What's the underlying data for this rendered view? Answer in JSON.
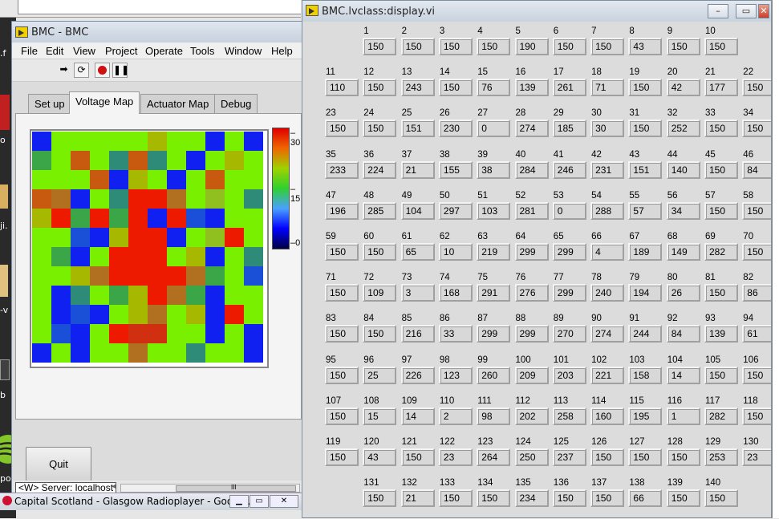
{
  "left_window": {
    "title": "BMC - BMC",
    "menu": [
      "File",
      "Edit",
      "View",
      "Project",
      "Operate",
      "Tools",
      "Window",
      "Help"
    ],
    "tabs": [
      "Set up",
      "Voltage Map",
      "Actuator Map",
      "Debug"
    ],
    "active_tab": "Voltage Map",
    "colorbar_ticks": [
      "30",
      "15",
      "0"
    ],
    "quit_label": "Quit",
    "server_label": "<W> Server: localhost",
    "scroll_marker": "III"
  },
  "heatmap": {
    "rows": 12,
    "cols": 12,
    "palette": {
      "G": "#78f000",
      "B": "#1020f0",
      "R": "#ee1a00",
      "O": "#c85a10",
      "T": "#2e8b78",
      "M": "#3aa648",
      "Y": "#a6b800",
      "K": "#1a4fd8",
      "S": "#4cd030",
      "D": "#d03010",
      "L": "#90c020",
      "P": "#b07020"
    },
    "grid": [
      "BGGGGGYGGBGB",
      "MGOGTOTGBGYG",
      "GGGOBYGBGOGG",
      "OPBGTRRPGLGT",
      "YRMRMRBRKBGG",
      "GGKBYRRBGLRG",
      "GMBGRRRGYBGT",
      "GGYPRRRRPMGK",
      "GBTGMYRPMBGG",
      "GBKBGYPGYBRG",
      "GKBGRDDGGBGB",
      "BGBGGPGGTGGB"
    ]
  },
  "right_window": {
    "title": "BMC.lvclass:display.vi",
    "minimize": "–",
    "restore": "▭",
    "close": "✕",
    "items": [
      {
        "n": "1",
        "v": "150"
      },
      {
        "n": "2",
        "v": "150"
      },
      {
        "n": "3",
        "v": "150"
      },
      {
        "n": "4",
        "v": "150"
      },
      {
        "n": "5",
        "v": "190"
      },
      {
        "n": "6",
        "v": "150"
      },
      {
        "n": "7",
        "v": "150"
      },
      {
        "n": "8",
        "v": "43"
      },
      {
        "n": "9",
        "v": "150"
      },
      {
        "n": "10",
        "v": "150"
      },
      {
        "n": "11",
        "v": "110"
      },
      {
        "n": "12",
        "v": "150"
      },
      {
        "n": "13",
        "v": "243"
      },
      {
        "n": "14",
        "v": "150"
      },
      {
        "n": "15",
        "v": "76"
      },
      {
        "n": "16",
        "v": "139"
      },
      {
        "n": "17",
        "v": "261"
      },
      {
        "n": "18",
        "v": "71"
      },
      {
        "n": "19",
        "v": "150"
      },
      {
        "n": "20",
        "v": "42"
      },
      {
        "n": "21",
        "v": "177"
      },
      {
        "n": "22",
        "v": "150"
      },
      {
        "n": "23",
        "v": "150"
      },
      {
        "n": "24",
        "v": "150"
      },
      {
        "n": "25",
        "v": "151"
      },
      {
        "n": "26",
        "v": "230"
      },
      {
        "n": "27",
        "v": "0"
      },
      {
        "n": "28",
        "v": "274"
      },
      {
        "n": "29",
        "v": "185"
      },
      {
        "n": "30",
        "v": "30"
      },
      {
        "n": "31",
        "v": "150"
      },
      {
        "n": "32",
        "v": "252"
      },
      {
        "n": "33",
        "v": "150"
      },
      {
        "n": "34",
        "v": "150"
      },
      {
        "n": "35",
        "v": "233"
      },
      {
        "n": "36",
        "v": "224"
      },
      {
        "n": "37",
        "v": "21"
      },
      {
        "n": "38",
        "v": "155"
      },
      {
        "n": "39",
        "v": "38"
      },
      {
        "n": "40",
        "v": "284"
      },
      {
        "n": "41",
        "v": "246"
      },
      {
        "n": "42",
        "v": "231"
      },
      {
        "n": "43",
        "v": "151"
      },
      {
        "n": "44",
        "v": "140"
      },
      {
        "n": "45",
        "v": "150"
      },
      {
        "n": "46",
        "v": "84"
      },
      {
        "n": "47",
        "v": "196"
      },
      {
        "n": "48",
        "v": "285"
      },
      {
        "n": "49",
        "v": "104"
      },
      {
        "n": "50",
        "v": "297"
      },
      {
        "n": "51",
        "v": "103"
      },
      {
        "n": "52",
        "v": "281"
      },
      {
        "n": "53",
        "v": "0"
      },
      {
        "n": "54",
        "v": "288"
      },
      {
        "n": "55",
        "v": "57"
      },
      {
        "n": "56",
        "v": "34"
      },
      {
        "n": "57",
        "v": "150"
      },
      {
        "n": "58",
        "v": "150"
      },
      {
        "n": "59",
        "v": "150"
      },
      {
        "n": "60",
        "v": "150"
      },
      {
        "n": "61",
        "v": "65"
      },
      {
        "n": "62",
        "v": "10"
      },
      {
        "n": "63",
        "v": "219"
      },
      {
        "n": "64",
        "v": "299"
      },
      {
        "n": "65",
        "v": "299"
      },
      {
        "n": "66",
        "v": "4"
      },
      {
        "n": "67",
        "v": "189"
      },
      {
        "n": "68",
        "v": "149"
      },
      {
        "n": "69",
        "v": "282"
      },
      {
        "n": "70",
        "v": "150"
      },
      {
        "n": "71",
        "v": "150"
      },
      {
        "n": "72",
        "v": "109"
      },
      {
        "n": "73",
        "v": "3"
      },
      {
        "n": "74",
        "v": "168"
      },
      {
        "n": "75",
        "v": "291"
      },
      {
        "n": "76",
        "v": "276"
      },
      {
        "n": "77",
        "v": "299"
      },
      {
        "n": "78",
        "v": "240"
      },
      {
        "n": "79",
        "v": "194"
      },
      {
        "n": "80",
        "v": "26"
      },
      {
        "n": "81",
        "v": "150"
      },
      {
        "n": "82",
        "v": "86"
      },
      {
        "n": "83",
        "v": "150"
      },
      {
        "n": "84",
        "v": "150"
      },
      {
        "n": "85",
        "v": "216"
      },
      {
        "n": "86",
        "v": "33"
      },
      {
        "n": "87",
        "v": "299"
      },
      {
        "n": "88",
        "v": "299"
      },
      {
        "n": "89",
        "v": "270"
      },
      {
        "n": "90",
        "v": "274"
      },
      {
        "n": "91",
        "v": "244"
      },
      {
        "n": "92",
        "v": "84"
      },
      {
        "n": "93",
        "v": "139"
      },
      {
        "n": "94",
        "v": "61"
      },
      {
        "n": "95",
        "v": "150"
      },
      {
        "n": "96",
        "v": "25"
      },
      {
        "n": "97",
        "v": "226"
      },
      {
        "n": "98",
        "v": "123"
      },
      {
        "n": "99",
        "v": "260"
      },
      {
        "n": "100",
        "v": "209"
      },
      {
        "n": "101",
        "v": "203"
      },
      {
        "n": "102",
        "v": "221"
      },
      {
        "n": "103",
        "v": "158"
      },
      {
        "n": "104",
        "v": "14"
      },
      {
        "n": "105",
        "v": "150"
      },
      {
        "n": "106",
        "v": "150"
      },
      {
        "n": "107",
        "v": "150"
      },
      {
        "n": "108",
        "v": "15"
      },
      {
        "n": "109",
        "v": "14"
      },
      {
        "n": "110",
        "v": "2"
      },
      {
        "n": "111",
        "v": "98"
      },
      {
        "n": "112",
        "v": "202"
      },
      {
        "n": "113",
        "v": "258"
      },
      {
        "n": "114",
        "v": "160"
      },
      {
        "n": "115",
        "v": "195"
      },
      {
        "n": "116",
        "v": "1"
      },
      {
        "n": "117",
        "v": "282"
      },
      {
        "n": "118",
        "v": "150"
      },
      {
        "n": "119",
        "v": "150"
      },
      {
        "n": "120",
        "v": "43"
      },
      {
        "n": "121",
        "v": "150"
      },
      {
        "n": "122",
        "v": "23"
      },
      {
        "n": "123",
        "v": "264"
      },
      {
        "n": "124",
        "v": "250"
      },
      {
        "n": "125",
        "v": "237"
      },
      {
        "n": "126",
        "v": "150"
      },
      {
        "n": "127",
        "v": "150"
      },
      {
        "n": "128",
        "v": "150"
      },
      {
        "n": "129",
        "v": "253"
      },
      {
        "n": "130",
        "v": "23"
      },
      {
        "n": "131",
        "v": "150"
      },
      {
        "n": "132",
        "v": "21"
      },
      {
        "n": "133",
        "v": "150"
      },
      {
        "n": "134",
        "v": "150"
      },
      {
        "n": "135",
        "v": "234"
      },
      {
        "n": "136",
        "v": "150"
      },
      {
        "n": "137",
        "v": "150"
      },
      {
        "n": "138",
        "v": "66"
      },
      {
        "n": "139",
        "v": "150"
      },
      {
        "n": "140",
        "v": "150"
      }
    ]
  },
  "taskbar": {
    "title": "Capital Scotland - Glasgow Radioplayer - Googl...",
    "min": "▁",
    "max": "▭",
    "close": "✕"
  },
  "desktop": {
    "spotify_label": "potify"
  }
}
